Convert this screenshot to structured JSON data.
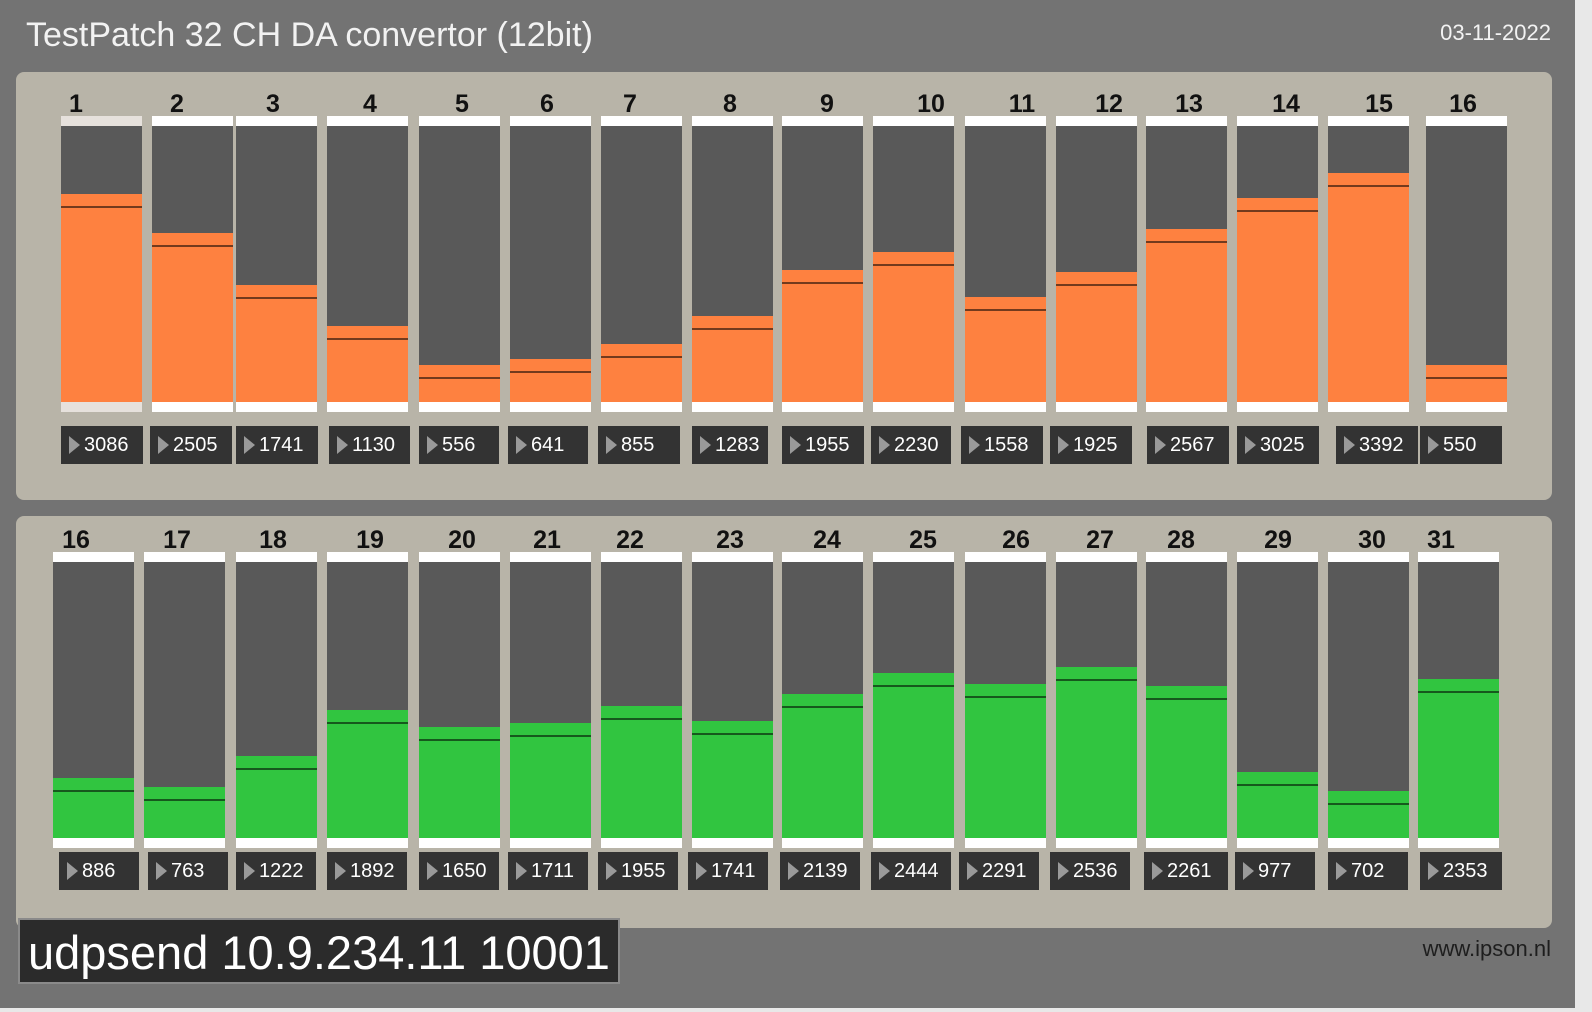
{
  "window": {
    "title": "TestPatch 32 CH DA convertor (12bit)",
    "date": "03-11-2022",
    "udpsend": "udpsend 10.9.234.11 10001",
    "website": "www.ipson.nl"
  },
  "range_max": 4095,
  "colors": {
    "top_fill": "#fe8140",
    "bottom_fill": "#31c540",
    "track": "#595959",
    "panel": "#b8b4a8",
    "window": "#737373"
  },
  "top_channels": [
    {
      "label": "1",
      "value": 3086
    },
    {
      "label": "2",
      "value": 2505
    },
    {
      "label": "3",
      "value": 1741
    },
    {
      "label": "4",
      "value": 1130
    },
    {
      "label": "5",
      "value": 556
    },
    {
      "label": "6",
      "value": 641
    },
    {
      "label": "7",
      "value": 855
    },
    {
      "label": "8",
      "value": 1283
    },
    {
      "label": "9",
      "value": 1955
    },
    {
      "label": "10",
      "value": 2230
    },
    {
      "label": "11",
      "value": 1558
    },
    {
      "label": "12",
      "value": 1925
    },
    {
      "label": "13",
      "value": 2567
    },
    {
      "label": "14",
      "value": 3025
    },
    {
      "label": "15",
      "value": 3392
    },
    {
      "label": "16",
      "value": 550
    }
  ],
  "bottom_channels": [
    {
      "label": "16",
      "value": 886
    },
    {
      "label": "17",
      "value": 763
    },
    {
      "label": "18",
      "value": 1222
    },
    {
      "label": "19",
      "value": 1892
    },
    {
      "label": "20",
      "value": 1650
    },
    {
      "label": "21",
      "value": 1711
    },
    {
      "label": "22",
      "value": 1955
    },
    {
      "label": "23",
      "value": 1741
    },
    {
      "label": "24",
      "value": 2139
    },
    {
      "label": "25",
      "value": 2444
    },
    {
      "label": "26",
      "value": 2291
    },
    {
      "label": "27",
      "value": 2536
    },
    {
      "label": "28",
      "value": 2261
    },
    {
      "label": "29",
      "value": 977
    },
    {
      "label": "30",
      "value": 702
    },
    {
      "label": "31",
      "value": 2353
    }
  ]
}
